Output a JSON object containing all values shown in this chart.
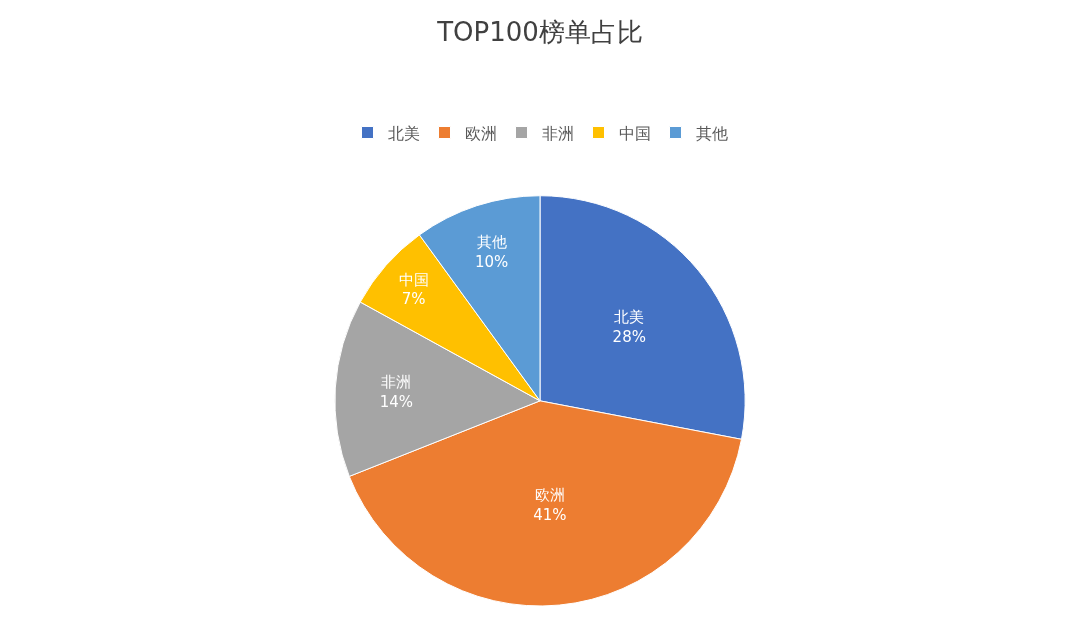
{
  "chart_data": {
    "type": "pie",
    "title": "TOP100榜单占比",
    "categories": [
      "北美",
      "欧洲",
      "非洲",
      "中国",
      "其他"
    ],
    "values": [
      28,
      41,
      14,
      7,
      10
    ],
    "value_labels": [
      "28%",
      "41%",
      "14%",
      "7%",
      "10%"
    ],
    "colors": [
      "#4472c4",
      "#ed7d31",
      "#a5a5a5",
      "#ffc000",
      "#5b9bd5"
    ],
    "legend": "top"
  }
}
